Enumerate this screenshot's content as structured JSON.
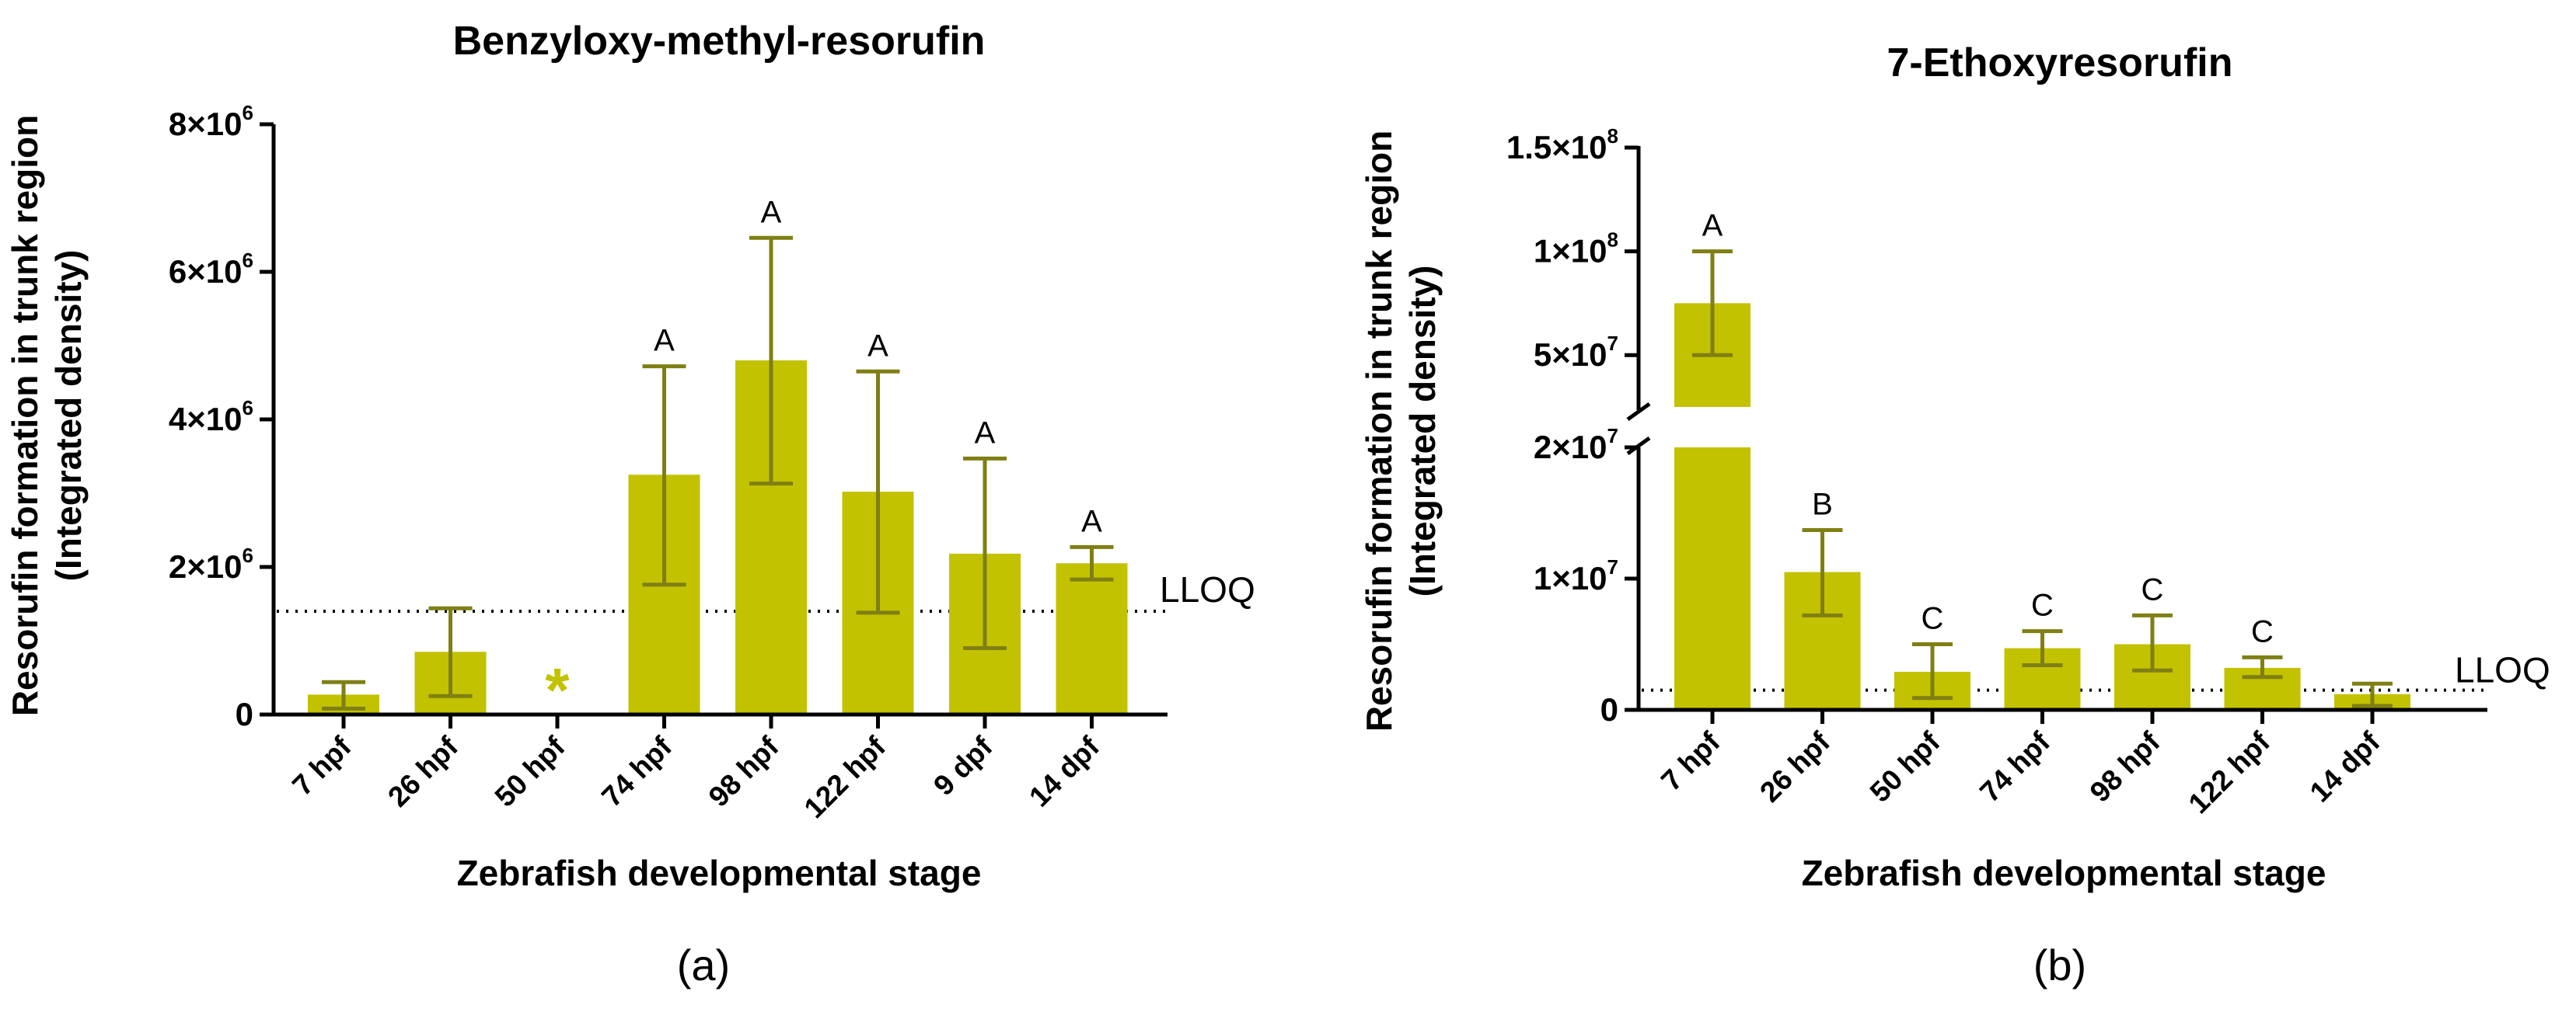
{
  "colors": {
    "bar": "#c2c200",
    "error": "#7f7f14",
    "text": "#000000"
  },
  "chart_data": [
    {
      "type": "bar",
      "panel_label": "(a)",
      "title": "Benzyloxy-methyl-resorufin",
      "xlabel": "Zebrafish developmental stage",
      "ylabel": [
        "Resorufin formation in trunk region",
        "(Integrated density)"
      ],
      "ylim": [
        0,
        8000000
      ],
      "yticks": [
        {
          "value": 0,
          "base": "0",
          "exp": ""
        },
        {
          "value": 2000000,
          "base": "2×10",
          "exp": "6"
        },
        {
          "value": 4000000,
          "base": "4×10",
          "exp": "6"
        },
        {
          "value": 6000000,
          "base": "6×10",
          "exp": "6"
        },
        {
          "value": 8000000,
          "base": "8×10",
          "exp": "6"
        }
      ],
      "categories": [
        "7 hpf",
        "26 hpf",
        "50 hpf",
        "74 hpf",
        "98 hpf",
        "122 hpf",
        "9 dpf",
        "14 dpf"
      ],
      "values": [
        270000,
        850000,
        0,
        3250000,
        4800000,
        3020000,
        2180000,
        2050000
      ],
      "err_low": [
        80000,
        250000,
        null,
        1760000,
        3130000,
        1380000,
        900000,
        1830000
      ],
      "err_high": [
        440000,
        1440000,
        null,
        4720000,
        6460000,
        4650000,
        3470000,
        2270000
      ],
      "letters": [
        "",
        "",
        "",
        "A",
        "A",
        "A",
        "A",
        "A"
      ],
      "markers": [
        "",
        "",
        "*",
        "",
        "",
        "",
        "",
        ""
      ],
      "lloq": {
        "value": 1400000,
        "label": "LLOQ"
      }
    },
    {
      "type": "bar",
      "panel_label": "(b)",
      "title": "7-Ethoxyresorufin",
      "xlabel": "Zebrafish developmental stage",
      "ylabel": [
        "Resorufin formation in trunk region",
        "(Integrated density)"
      ],
      "axis_break": {
        "lower_range": [
          0,
          20000000
        ],
        "upper_range": [
          25000000,
          150000000
        ]
      },
      "yticks": [
        {
          "value": 0,
          "base": "0",
          "exp": ""
        },
        {
          "value": 10000000,
          "base": "1×10",
          "exp": "7"
        },
        {
          "value": 20000000,
          "base": "2×10",
          "exp": "7"
        },
        {
          "value": 50000000,
          "base": "5×10",
          "exp": "7"
        },
        {
          "value": 100000000,
          "base": "1×10",
          "exp": "8"
        },
        {
          "value": 150000000,
          "base": "1.5×10",
          "exp": "8"
        }
      ],
      "categories": [
        "7 hpf",
        "26 hpf",
        "50 hpf",
        "74 hpf",
        "98 hpf",
        "122 hpf",
        "14 dpf"
      ],
      "values": [
        75000000,
        10500000,
        2900000,
        4700000,
        5000000,
        3200000,
        1200000
      ],
      "err_low": [
        50000000,
        7200000,
        900000,
        3400000,
        3000000,
        2500000,
        300000
      ],
      "err_high": [
        100000000,
        13700000,
        5000000,
        6000000,
        7200000,
        4000000,
        2000000
      ],
      "letters": [
        "A",
        "B",
        "C",
        "C",
        "C",
        "C",
        ""
      ],
      "markers": [
        "",
        "",
        "",
        "",
        "",
        "",
        ""
      ],
      "lloq": {
        "value": 1500000,
        "label": "LLOQ"
      }
    }
  ]
}
